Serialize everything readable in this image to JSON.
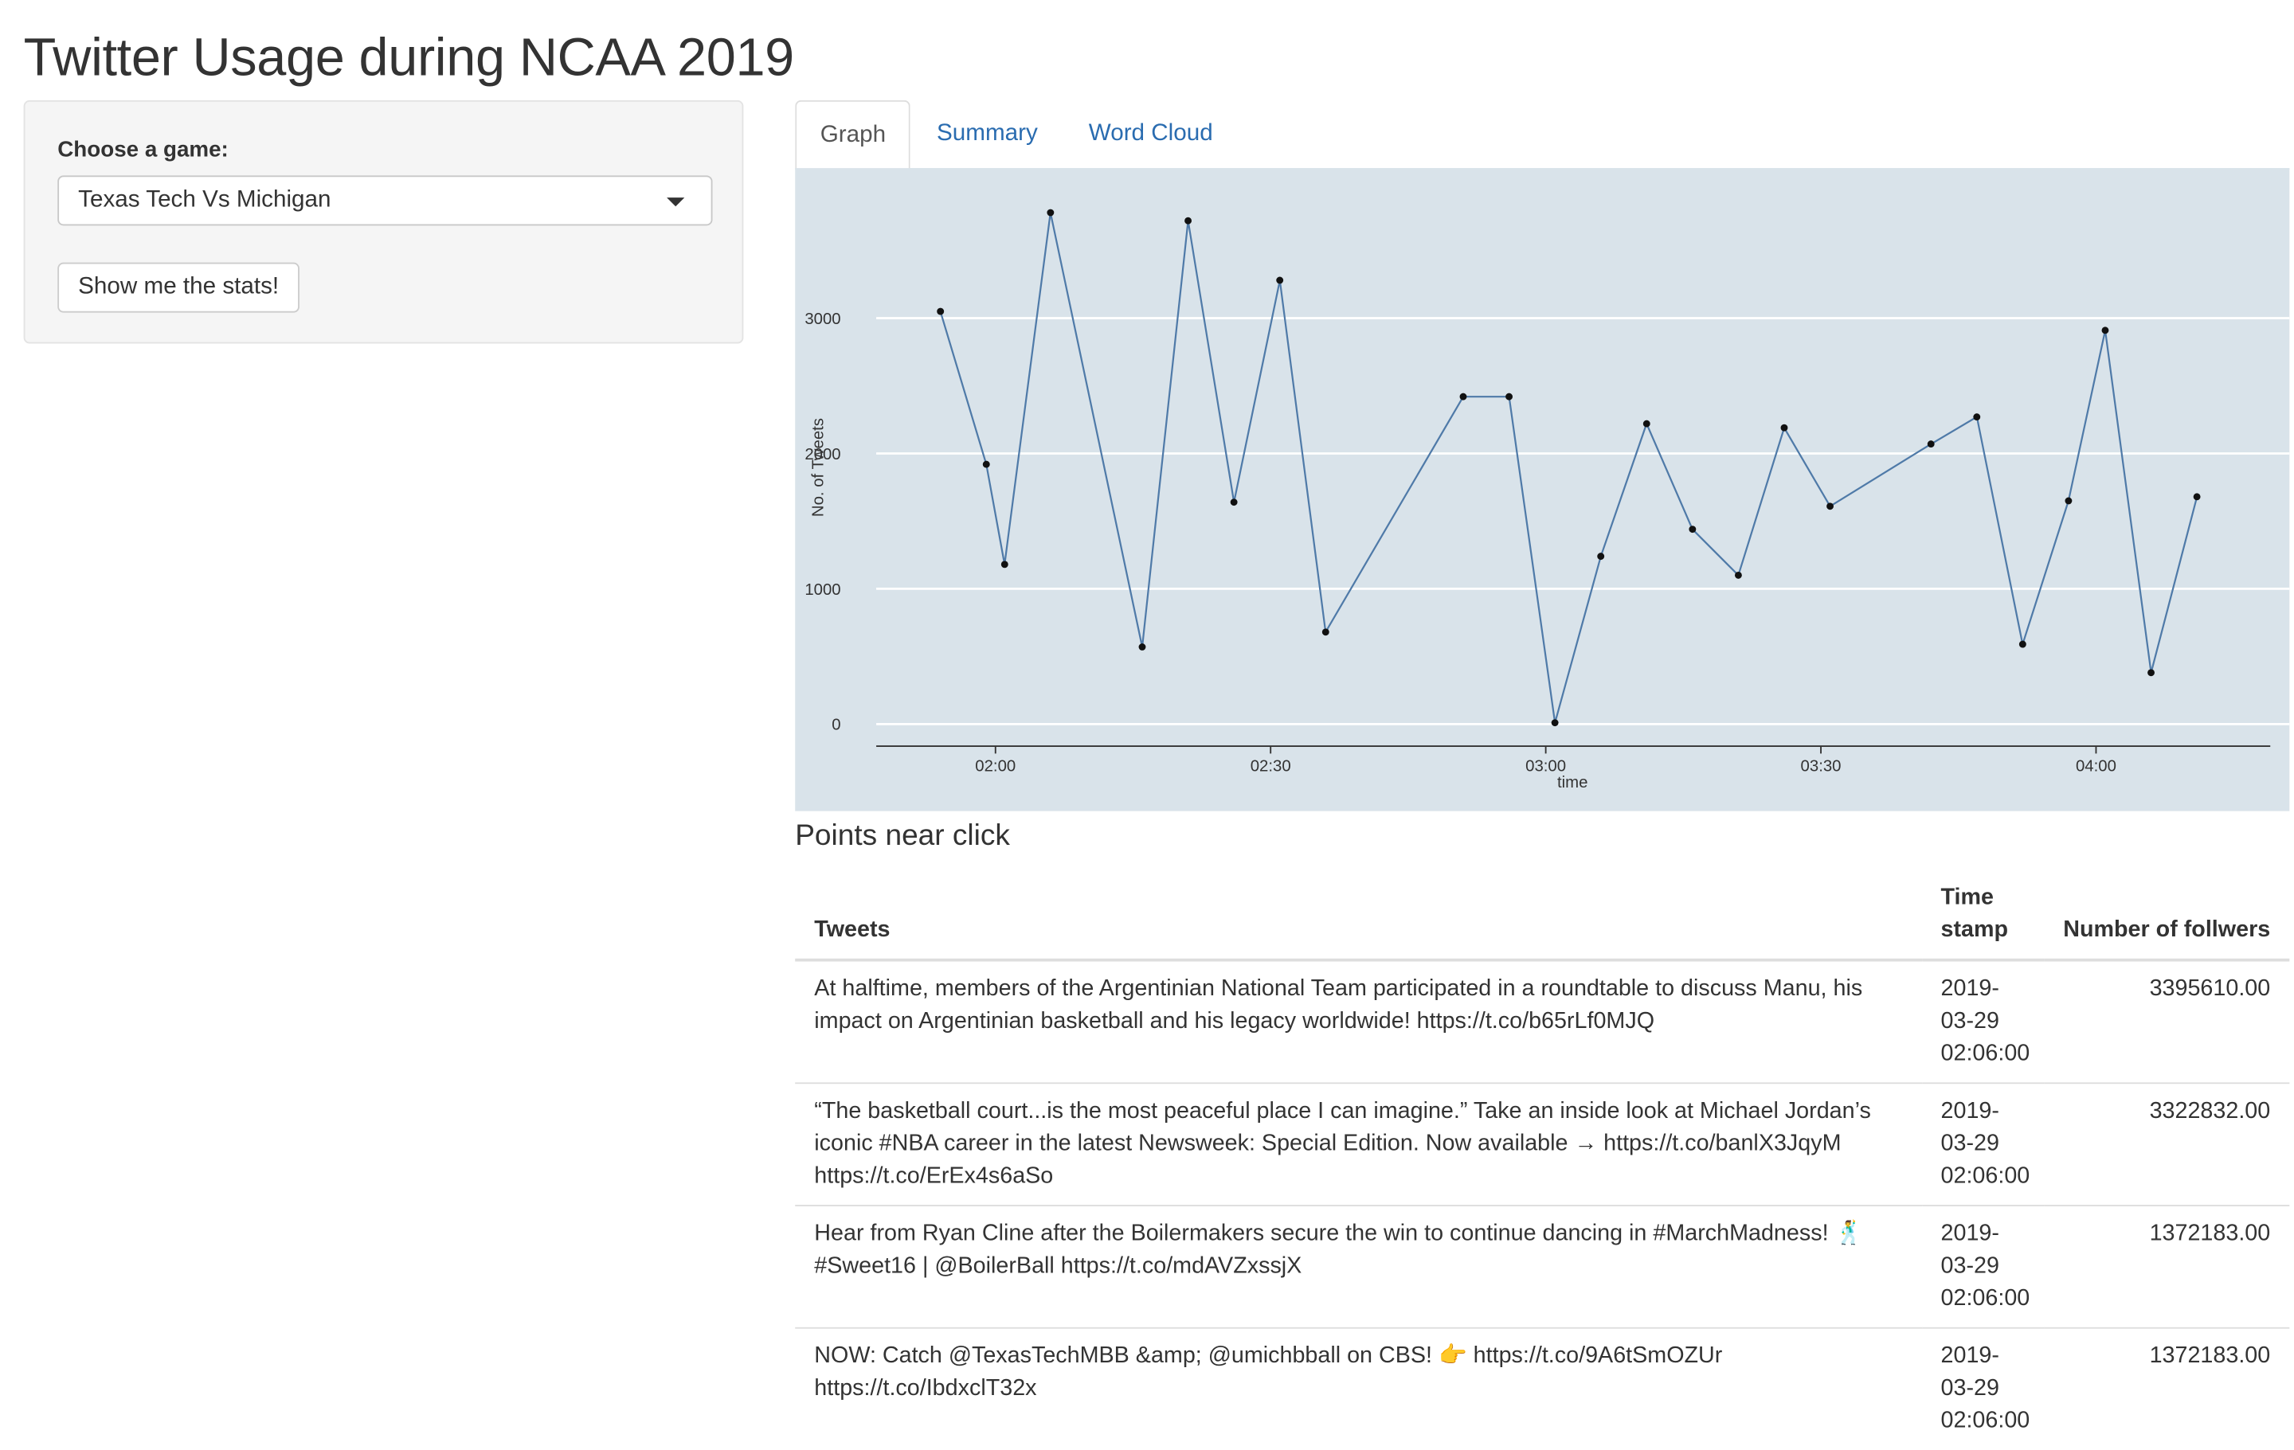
{
  "page": {
    "title": "Twitter Usage during NCAA 2019"
  },
  "sidebar": {
    "select_label": "Choose a game:",
    "selected_game": "Texas Tech Vs Michigan",
    "button_label": "Show me the stats!"
  },
  "tabs": [
    {
      "label": "Graph",
      "active": true
    },
    {
      "label": "Summary",
      "active": false
    },
    {
      "label": "Word Cloud",
      "active": false
    }
  ],
  "chart_data": {
    "type": "line",
    "xlabel": "time",
    "ylabel": "No. of Tweets",
    "ylim": [
      0,
      4000
    ],
    "xlim": [
      "01:47",
      "04:19"
    ],
    "y_ticks": [
      0,
      1000,
      2000,
      3000
    ],
    "x_ticks": [
      "02:00",
      "02:30",
      "03:00",
      "03:30",
      "04:00"
    ],
    "grid": true,
    "line_color": "#4f7aa8",
    "background": "#d9e3ea",
    "x": [
      "01:54",
      "01:59",
      "02:01",
      "02:06",
      "02:16",
      "02:21",
      "02:26",
      "02:31",
      "02:36",
      "02:51",
      "02:56",
      "03:01",
      "03:06",
      "03:11",
      "03:16",
      "03:21",
      "03:26",
      "03:31",
      "03:42",
      "03:47",
      "03:52",
      "03:57",
      "04:01",
      "04:06",
      "04:11"
    ],
    "values": [
      3050,
      1920,
      1180,
      3780,
      570,
      3720,
      1640,
      3280,
      680,
      2420,
      2420,
      10,
      1240,
      2220,
      1440,
      1100,
      2190,
      1610,
      2070,
      2270,
      590,
      1650,
      2910,
      380,
      1680
    ]
  },
  "results": {
    "heading": "Points near click",
    "columns": [
      "Tweets",
      "Time stamp",
      "Number of follwers"
    ],
    "rows": [
      {
        "tweet": "At halftime, members of the Argentinian National Team participated in a roundtable to discuss Manu, his impact on Argentinian basketball and his legacy worldwide! https://t.co/b65rLf0MJQ",
        "time": "2019-03-29 02:06:00",
        "followers": "3395610.00"
      },
      {
        "tweet": "“The basketball court...is the most peaceful place I can imagine.” Take an inside look at Michael Jordan’s iconic #NBA career in the latest Newsweek: Special Edition. Now available → https://t.co/banlX3JqyM https://t.co/ErEx4s6aSo",
        "time": "2019-03-29 02:06:00",
        "followers": "3322832.00"
      },
      {
        "tweet": "Hear from Ryan Cline after the Boilermakers secure the win to continue dancing in #MarchMadness! 🕺 #Sweet16 | @BoilerBall https://t.co/mdAVZxssjX",
        "time": "2019-03-29 02:06:00",
        "followers": "1372183.00"
      },
      {
        "tweet": "NOW: Catch @TexasTechMBB &amp; @umichbball on CBS! 👉 https://t.co/9A6tSmOZUr https://t.co/IbdxclT32x",
        "time": "2019-03-29 02:06:00",
        "followers": "1372183.00"
      }
    ]
  }
}
